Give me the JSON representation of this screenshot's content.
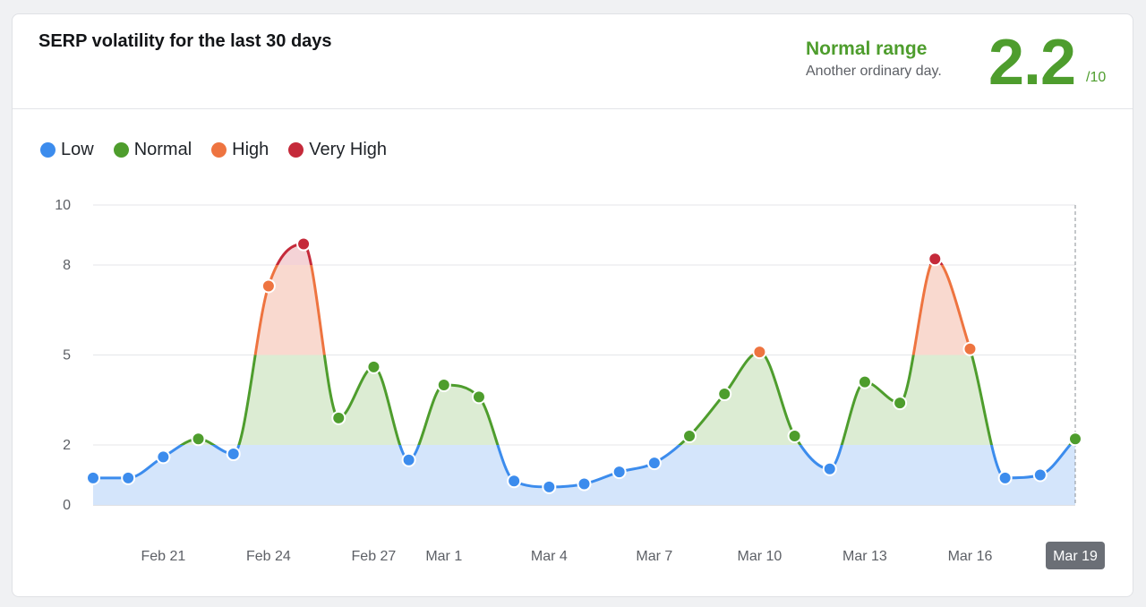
{
  "header": {
    "title": "SERP volatility for the last 30 days",
    "range_label": "Normal range",
    "range_sub": "Another ordinary day.",
    "score": "2.2",
    "score_max": "/10"
  },
  "legend": [
    {
      "label": "Low",
      "color": "#3c8ced"
    },
    {
      "label": "Normal",
      "color": "#4e9d2d"
    },
    {
      "label": "High",
      "color": "#ee7440"
    },
    {
      "label": "Very High",
      "color": "#c52a3a"
    }
  ],
  "chart_data": {
    "type": "area",
    "title": "SERP volatility for the last 30 days",
    "x": [
      "Feb 19",
      "Feb 20",
      "Feb 21",
      "Feb 22",
      "Feb 23",
      "Feb 24",
      "Feb 25",
      "Feb 26",
      "Feb 27",
      "Feb 28",
      "Mar 1",
      "Mar 2",
      "Mar 3",
      "Mar 4",
      "Mar 5",
      "Mar 6",
      "Mar 7",
      "Mar 8",
      "Mar 9",
      "Mar 10",
      "Mar 11",
      "Mar 12",
      "Mar 13",
      "Mar 14",
      "Mar 15",
      "Mar 16",
      "Mar 17",
      "Mar 18",
      "Mar 19"
    ],
    "values": [
      0.9,
      0.9,
      1.6,
      2.2,
      1.7,
      7.3,
      8.7,
      2.9,
      4.6,
      1.5,
      4.0,
      3.6,
      0.8,
      0.6,
      0.7,
      1.1,
      1.4,
      2.3,
      3.7,
      5.1,
      2.3,
      1.2,
      4.1,
      3.4,
      8.2,
      5.2,
      0.9,
      1.0,
      2.2
    ],
    "xtick_labels": [
      "Feb 21",
      "Feb 24",
      "Feb 27",
      "Mar 1",
      "Mar 4",
      "Mar 7",
      "Mar 10",
      "Mar 13",
      "Mar 16",
      "Mar 19"
    ],
    "highlighted_x": "Mar 19",
    "yticks": [
      0,
      2,
      5,
      8,
      10
    ],
    "ylim": [
      0,
      10
    ],
    "bands": [
      {
        "name": "Low",
        "from": 0,
        "to": 2,
        "color": "#3c8ced",
        "fill": "#d4e5fb"
      },
      {
        "name": "Normal",
        "from": 2,
        "to": 5,
        "color": "#4e9d2d",
        "fill": "#dcecd3"
      },
      {
        "name": "High",
        "from": 5,
        "to": 8,
        "color": "#ee7440",
        "fill": "#f9d9cf"
      },
      {
        "name": "Very High",
        "from": 8,
        "to": 10,
        "color": "#c52a3a",
        "fill": "#f4d3d6"
      }
    ],
    "grid": true,
    "legend_position": "top-left"
  }
}
